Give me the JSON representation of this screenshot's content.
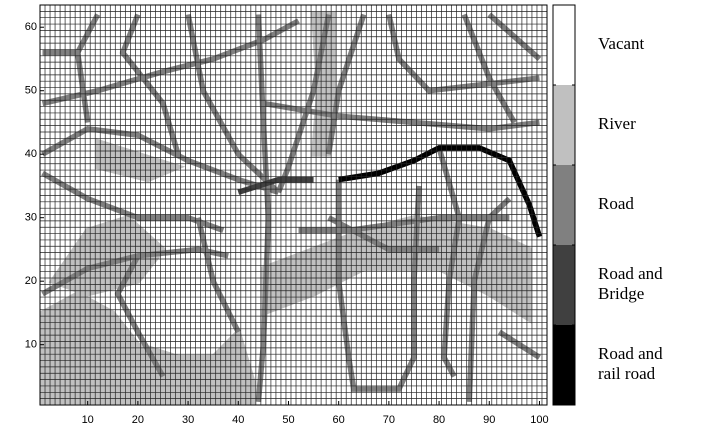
{
  "chart_data": {
    "type": "gridmap",
    "xlim": [
      0.5,
      101.5
    ],
    "ylim": [
      0.5,
      63.5
    ],
    "xticks": [
      10,
      20,
      30,
      40,
      50,
      60,
      70,
      80,
      90,
      100
    ],
    "yticks": [
      10,
      20,
      30,
      40,
      50,
      60
    ],
    "classes": [
      {
        "label": [
          "Vacant"
        ],
        "color": "#ffffff"
      },
      {
        "label": [
          "River"
        ],
        "color": "#c0c0c0"
      },
      {
        "label": [
          "Road"
        ],
        "color": "#808080"
      },
      {
        "label": [
          "Road and",
          "Bridge"
        ],
        "color": "#404040"
      },
      {
        "label": [
          "Road and",
          "rail road"
        ],
        "color": "#000000"
      }
    ],
    "areas": [
      {
        "class": 1,
        "x": [
          1,
          1,
          8,
          15,
          20,
          28,
          35,
          40,
          43,
          43
        ],
        "y": [
          1,
          15,
          18,
          15,
          10,
          8,
          8,
          12,
          4,
          1
        ]
      },
      {
        "class": 1,
        "x": [
          3,
          10,
          18,
          25,
          20,
          10
        ],
        "y": [
          20,
          28,
          30,
          25,
          20,
          18
        ]
      },
      {
        "class": 1,
        "x": [
          45,
          55,
          65,
          75,
          90,
          98,
          98,
          90,
          80,
          65,
          55,
          45
        ],
        "y": [
          22,
          25,
          28,
          30,
          28,
          25,
          14,
          18,
          22,
          22,
          18,
          15
        ]
      },
      {
        "class": 1,
        "x": [
          55,
          59,
          59,
          58,
          55,
          56
        ],
        "y": [
          62,
          62,
          45,
          40,
          40,
          50
        ]
      },
      {
        "class": 1,
        "x": [
          12,
          20,
          28,
          22,
          12
        ],
        "y": [
          42,
          40,
          38,
          36,
          38
        ]
      }
    ],
    "lines": [
      {
        "class": 2,
        "x": [
          1,
          8,
          12
        ],
        "y": [
          56,
          56,
          62
        ]
      },
      {
        "class": 2,
        "x": [
          8,
          10
        ],
        "y": [
          56,
          45
        ]
      },
      {
        "class": 2,
        "x": [
          1,
          12,
          25,
          35,
          45,
          52
        ],
        "y": [
          48,
          50,
          53,
          55,
          58,
          61
        ]
      },
      {
        "class": 2,
        "x": [
          1,
          10,
          20,
          30,
          40,
          48
        ],
        "y": [
          40,
          44,
          43,
          39,
          36,
          34
        ]
      },
      {
        "class": 2,
        "x": [
          1,
          10,
          20,
          30,
          37
        ],
        "y": [
          37,
          33,
          30,
          30,
          28
        ]
      },
      {
        "class": 2,
        "x": [
          1,
          10,
          20,
          32,
          38
        ],
        "y": [
          18,
          22,
          24,
          25,
          24
        ]
      },
      {
        "class": 2,
        "x": [
          20,
          16,
          20,
          25
        ],
        "y": [
          24,
          18,
          12,
          5
        ]
      },
      {
        "class": 2,
        "x": [
          44,
          45,
          46,
          45,
          44
        ],
        "y": [
          62,
          45,
          30,
          10,
          1
        ]
      },
      {
        "class": 2,
        "x": [
          30,
          33,
          40,
          48
        ],
        "y": [
          62,
          50,
          40,
          34
        ]
      },
      {
        "class": 2,
        "x": [
          58,
          55,
          50,
          48
        ],
        "y": [
          62,
          50,
          38,
          34
        ]
      },
      {
        "class": 2,
        "x": [
          65,
          60,
          58
        ],
        "y": [
          62,
          50,
          40
        ]
      },
      {
        "class": 2,
        "x": [
          45,
          60,
          75,
          90,
          100
        ],
        "y": [
          48,
          46,
          45,
          44,
          45
        ]
      },
      {
        "class": 2,
        "x": [
          60,
          60,
          62,
          63,
          72,
          75,
          75,
          76
        ],
        "y": [
          36,
          20,
          8,
          3,
          3,
          8,
          20,
          35
        ]
      },
      {
        "class": 2,
        "x": [
          52,
          62,
          80,
          94
        ],
        "y": [
          28,
          28,
          30,
          30
        ]
      },
      {
        "class": 2,
        "x": [
          80,
          84,
          82,
          81,
          83
        ],
        "y": [
          41,
          30,
          20,
          8,
          5
        ]
      },
      {
        "class": 2,
        "x": [
          86,
          87,
          90,
          94
        ],
        "y": [
          1,
          20,
          30,
          33
        ]
      },
      {
        "class": 2,
        "x": [
          70,
          72,
          78,
          100
        ],
        "y": [
          62,
          55,
          50,
          52
        ]
      },
      {
        "class": 2,
        "x": [
          85,
          90,
          95
        ],
        "y": [
          62,
          52,
          45
        ]
      },
      {
        "class": 2,
        "x": [
          90,
          100
        ],
        "y": [
          62,
          55
        ]
      },
      {
        "class": 2,
        "x": [
          58,
          70,
          80
        ],
        "y": [
          30,
          25,
          25
        ]
      },
      {
        "class": 2,
        "x": [
          92,
          100
        ],
        "y": [
          12,
          8
        ]
      },
      {
        "class": 2,
        "x": [
          20,
          17,
          25,
          28
        ],
        "y": [
          62,
          56,
          48,
          40
        ]
      },
      {
        "class": 2,
        "x": [
          32,
          35,
          40
        ],
        "y": [
          30,
          20,
          12
        ]
      },
      {
        "class": 3,
        "x": [
          40,
          48,
          55
        ],
        "y": [
          34,
          36,
          36
        ]
      },
      {
        "class": 4,
        "x": [
          60,
          68,
          75,
          80,
          88,
          94,
          98,
          100
        ],
        "y": [
          36,
          37,
          39,
          41,
          41,
          39,
          32,
          27
        ]
      }
    ]
  }
}
